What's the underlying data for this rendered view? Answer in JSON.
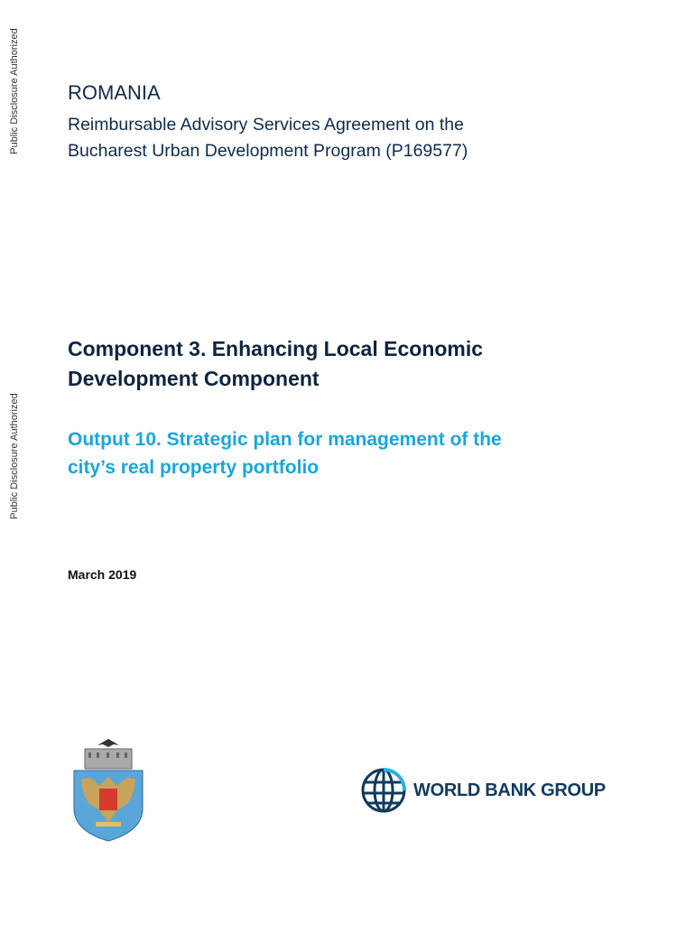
{
  "side_stamps": [
    "Public Disclosure Authorized",
    "Public Disclosure Authorized"
  ],
  "country": "ROMANIA",
  "subtitle_lines": [
    "Reimbursable Advisory Services Agreement on the",
    "Bucharest Urban Development Program (P169577)"
  ],
  "component_lines": [
    "Component 3. Enhancing Local Economic",
    "Development Component"
  ],
  "output_lines": [
    "Output 10. Strategic plan for management of the",
    "city’s real property portfolio"
  ],
  "date": "March 2019",
  "logos": {
    "bucharest": "bucharest-coat-of-arms",
    "world_bank": "WORLD BANK GROUP"
  },
  "colors": {
    "navy": "#0f2b4c",
    "accent": "#19a6e0"
  }
}
